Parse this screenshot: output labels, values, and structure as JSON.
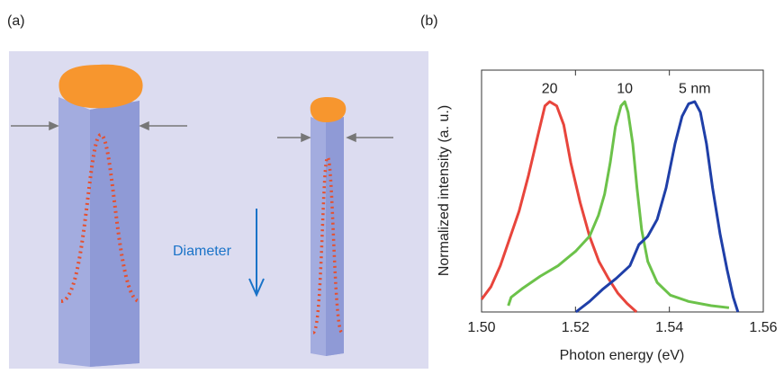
{
  "panel_a": {
    "label": "(a)",
    "annotation": "Diameter"
  },
  "panel_b_label": "(b)",
  "chart_data": {
    "type": "line",
    "x_label": "Photon energy (eV)",
    "y_label": "Normalized intensity (a. u.)",
    "xlim": [
      1.5,
      1.56
    ],
    "xticks": [
      {
        "value": 1.5,
        "label": "1.50"
      },
      {
        "value": 1.52,
        "label": "1.52"
      },
      {
        "value": 1.54,
        "label": "1.54"
      },
      {
        "value": 1.56,
        "label": "1.56"
      }
    ],
    "ylim": [
      0,
      1.15
    ],
    "series": [
      {
        "name": "20",
        "color": "#e8453c",
        "x": [
          1.5,
          1.502,
          1.504,
          1.506,
          1.508,
          1.51,
          1.512,
          1.5135,
          1.5145,
          1.516,
          1.5175,
          1.519,
          1.521,
          1.523,
          1.525,
          1.527,
          1.529,
          1.531,
          1.533
        ],
        "values": [
          0.06,
          0.12,
          0.22,
          0.35,
          0.48,
          0.65,
          0.84,
          0.98,
          1.0,
          0.98,
          0.89,
          0.71,
          0.52,
          0.36,
          0.24,
          0.16,
          0.09,
          0.04,
          0
        ]
      },
      {
        "name": "10",
        "color": "#6cc24a",
        "x": [
          1.5057,
          1.5063,
          1.5086,
          1.5125,
          1.5163,
          1.5201,
          1.523,
          1.5249,
          1.5262,
          1.5274,
          1.5285,
          1.5297,
          1.5305,
          1.5312,
          1.5322,
          1.5331,
          1.5341,
          1.5354,
          1.5374,
          1.5402,
          1.5441,
          1.5489,
          1.5527
        ],
        "values": [
          0.03,
          0.07,
          0.11,
          0.17,
          0.22,
          0.29,
          0.36,
          0.46,
          0.56,
          0.71,
          0.88,
          0.98,
          1.0,
          0.95,
          0.8,
          0.59,
          0.39,
          0.24,
          0.14,
          0.08,
          0.05,
          0.03,
          0.02
        ]
      },
      {
        "name": "5 nm",
        "color": "#1f3fa8",
        "x": [
          1.5201,
          1.523,
          1.5259,
          1.5287,
          1.5316,
          1.5335,
          1.5354,
          1.5374,
          1.5393,
          1.5412,
          1.5427,
          1.5441,
          1.5454,
          1.5466,
          1.5479,
          1.5492,
          1.5508,
          1.5523,
          1.5536,
          1.5546
        ],
        "values": [
          0,
          0.05,
          0.11,
          0.16,
          0.22,
          0.32,
          0.36,
          0.44,
          0.59,
          0.8,
          0.93,
          0.99,
          1.0,
          0.95,
          0.8,
          0.59,
          0.37,
          0.2,
          0.07,
          0
        ]
      }
    ]
  }
}
